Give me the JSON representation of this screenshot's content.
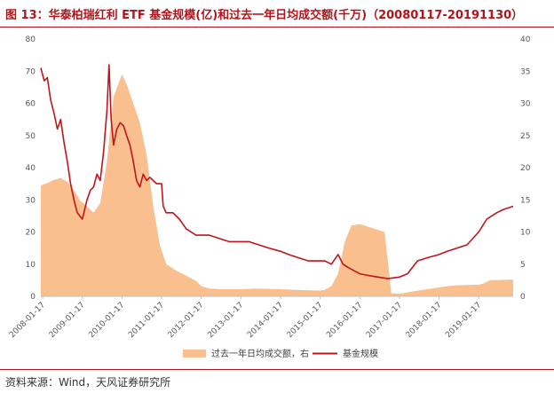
{
  "title": "图 13：华泰柏瑞红利 ETF 基金规模(亿)和过去一年日均成交额(千万)（20080117-20191130）",
  "source": "资料来源：Wind，天风证券研究所",
  "chart_data": {
    "type": "line+area",
    "xlim": [
      "2008-01-01",
      "2019-11-30"
    ],
    "x_ticks": [
      "2008-01-17",
      "2009-01-17",
      "2010-01-17",
      "2011-01-17",
      "2012-01-17",
      "2013-01-17",
      "2014-01-17",
      "2015-01-17",
      "2016-01-17",
      "2017-01-17",
      "2018-01-17",
      "2019-01-17"
    ],
    "y_left": {
      "min": 0,
      "max": 80,
      "ticks": [
        0,
        10,
        20,
        30,
        40,
        50,
        60,
        70,
        80
      ]
    },
    "y_right": {
      "min": 0,
      "max": 40,
      "ticks": [
        0,
        5,
        10,
        15,
        20,
        25,
        30,
        35,
        40
      ]
    },
    "legend_position": "bottom",
    "series": [
      {
        "name": "过去一年日均成交额，右",
        "chart_kind": "area",
        "axis": "right",
        "color": "#f9bf8f",
        "points": [
          [
            "2008-01-01",
            17.2
          ],
          [
            "2008-03-01",
            17.6
          ],
          [
            "2008-05-01",
            18.1
          ],
          [
            "2008-07-01",
            18.4
          ],
          [
            "2008-09-01",
            17.8
          ],
          [
            "2008-11-01",
            16.5
          ],
          [
            "2009-01-01",
            14.8
          ],
          [
            "2009-03-01",
            14.0
          ],
          [
            "2009-05-01",
            13.0
          ],
          [
            "2009-07-01",
            14.5
          ],
          [
            "2009-09-01",
            21.0
          ],
          [
            "2009-11-01",
            31.0
          ],
          [
            "2010-01-17",
            34.5
          ],
          [
            "2010-03-01",
            33.0
          ],
          [
            "2010-05-01",
            30.0
          ],
          [
            "2010-07-01",
            27.0
          ],
          [
            "2010-09-01",
            22.0
          ],
          [
            "2010-11-01",
            14.0
          ],
          [
            "2011-01-01",
            8.0
          ],
          [
            "2011-03-01",
            5.0
          ],
          [
            "2011-06-01",
            4.0
          ],
          [
            "2011-09-01",
            3.2
          ],
          [
            "2011-12-01",
            2.4
          ],
          [
            "2012-01-17",
            1.6
          ],
          [
            "2012-04-01",
            1.2
          ],
          [
            "2012-08-01",
            1.1
          ],
          [
            "2013-01-17",
            1.1
          ],
          [
            "2013-06-01",
            1.2
          ],
          [
            "2014-01-17",
            1.1
          ],
          [
            "2014-06-01",
            1.0
          ],
          [
            "2015-01-17",
            0.9
          ],
          [
            "2015-03-01",
            1.0
          ],
          [
            "2015-05-01",
            1.6
          ],
          [
            "2015-07-01",
            3.5
          ],
          [
            "2015-09-01",
            8.5
          ],
          [
            "2015-11-01",
            11.0
          ],
          [
            "2016-01-17",
            11.2
          ],
          [
            "2016-03-01",
            11.0
          ],
          [
            "2016-06-01",
            10.5
          ],
          [
            "2016-09-01",
            10.0
          ],
          [
            "2016-10-15",
            3.5
          ],
          [
            "2016-11-01",
            0.5
          ],
          [
            "2017-01-17",
            0.4
          ],
          [
            "2017-06-01",
            0.8
          ],
          [
            "2018-01-17",
            1.4
          ],
          [
            "2018-06-01",
            1.7
          ],
          [
            "2019-01-17",
            1.8
          ],
          [
            "2019-03-01",
            2.0
          ],
          [
            "2019-05-01",
            2.5
          ],
          [
            "2019-11-30",
            2.6
          ]
        ]
      },
      {
        "name": "基金规模",
        "chart_kind": "line",
        "axis": "left",
        "color": "#c0151b",
        "points": [
          [
            "2008-01-01",
            71
          ],
          [
            "2008-02-01",
            67
          ],
          [
            "2008-03-01",
            68
          ],
          [
            "2008-04-01",
            61
          ],
          [
            "2008-05-01",
            57
          ],
          [
            "2008-06-01",
            52
          ],
          [
            "2008-07-01",
            55
          ],
          [
            "2008-08-01",
            48
          ],
          [
            "2008-09-01",
            42
          ],
          [
            "2008-10-01",
            35
          ],
          [
            "2008-11-01",
            30
          ],
          [
            "2008-12-01",
            26
          ],
          [
            "2009-01-17",
            24
          ],
          [
            "2009-02-01",
            26
          ],
          [
            "2009-03-01",
            30
          ],
          [
            "2009-04-01",
            33
          ],
          [
            "2009-05-01",
            34
          ],
          [
            "2009-06-01",
            38
          ],
          [
            "2009-07-01",
            36
          ],
          [
            "2009-08-01",
            45
          ],
          [
            "2009-09-01",
            58
          ],
          [
            "2009-09-20",
            72
          ],
          [
            "2009-10-10",
            55
          ],
          [
            "2009-11-01",
            47
          ],
          [
            "2009-12-01",
            52
          ],
          [
            "2010-01-01",
            54
          ],
          [
            "2010-02-01",
            53
          ],
          [
            "2010-03-01",
            50
          ],
          [
            "2010-04-01",
            47
          ],
          [
            "2010-05-01",
            42
          ],
          [
            "2010-06-01",
            36
          ],
          [
            "2010-07-01",
            34
          ],
          [
            "2010-08-01",
            38
          ],
          [
            "2010-09-01",
            36
          ],
          [
            "2010-10-01",
            37
          ],
          [
            "2010-11-01",
            36
          ],
          [
            "2010-12-01",
            35
          ],
          [
            "2011-01-17",
            35
          ],
          [
            "2011-02-01",
            28
          ],
          [
            "2011-03-01",
            26
          ],
          [
            "2011-05-01",
            26
          ],
          [
            "2011-07-01",
            24
          ],
          [
            "2011-09-01",
            21
          ],
          [
            "2011-12-01",
            19
          ],
          [
            "2012-01-17",
            19
          ],
          [
            "2012-04-01",
            19
          ],
          [
            "2012-07-01",
            18
          ],
          [
            "2012-10-01",
            17
          ],
          [
            "2013-01-17",
            17
          ],
          [
            "2013-04-01",
            17
          ],
          [
            "2013-07-01",
            16
          ],
          [
            "2013-10-01",
            15
          ],
          [
            "2014-01-17",
            14
          ],
          [
            "2014-04-01",
            13
          ],
          [
            "2014-07-01",
            12
          ],
          [
            "2014-10-01",
            11
          ],
          [
            "2015-01-17",
            11
          ],
          [
            "2015-03-01",
            11
          ],
          [
            "2015-05-01",
            10
          ],
          [
            "2015-07-01",
            13
          ],
          [
            "2015-08-15",
            10
          ],
          [
            "2015-10-01",
            9
          ],
          [
            "2016-01-17",
            7
          ],
          [
            "2016-04-01",
            6.5
          ],
          [
            "2016-07-01",
            6
          ],
          [
            "2016-10-01",
            5.5
          ],
          [
            "2017-01-17",
            6
          ],
          [
            "2017-04-01",
            7
          ],
          [
            "2017-07-01",
            11
          ],
          [
            "2017-10-01",
            12
          ],
          [
            "2018-01-17",
            13
          ],
          [
            "2018-04-01",
            14
          ],
          [
            "2018-07-01",
            15
          ],
          [
            "2018-10-01",
            16
          ],
          [
            "2019-01-17",
            20
          ],
          [
            "2019-04-01",
            24
          ],
          [
            "2019-07-01",
            26
          ],
          [
            "2019-09-01",
            27
          ],
          [
            "2019-11-30",
            28
          ]
        ]
      }
    ]
  }
}
